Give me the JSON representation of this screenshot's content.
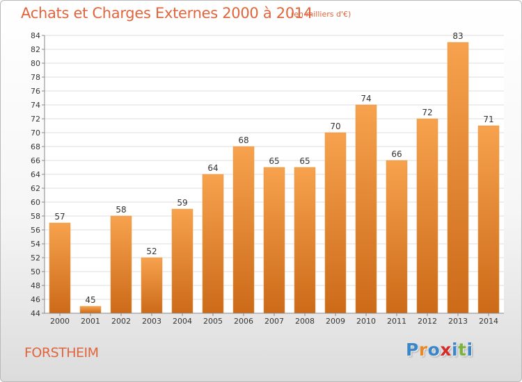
{
  "header": {
    "title": "Achats et Charges Externes 2000 à 2014",
    "unit": "(en milliers d'€)"
  },
  "footer": {
    "commune": "FORSTHEIM",
    "logo": [
      "P",
      "r",
      "o",
      "x",
      "i",
      "t",
      "i"
    ]
  },
  "colors": {
    "accent": "#e0643c",
    "bar_top": "#f7a24e",
    "bar_bottom": "#cc6a18",
    "logo_letters": [
      "#3a86c8",
      "#e6892a",
      "#3a86c8",
      "#d42b2b",
      "#3a86c8",
      "#7ab43c",
      "#3a86c8"
    ]
  },
  "chart_data": {
    "type": "bar",
    "categories": [
      "2000",
      "2001",
      "2002",
      "2003",
      "2004",
      "2005",
      "2006",
      "2007",
      "2008",
      "2009",
      "2010",
      "2011",
      "2012",
      "2013",
      "2014"
    ],
    "values": [
      57,
      45,
      58,
      52,
      59,
      64,
      68,
      65,
      65,
      70,
      74,
      66,
      72,
      83,
      71
    ],
    "ylim": [
      44,
      84
    ],
    "yticks": [
      44,
      46,
      48,
      50,
      52,
      54,
      56,
      58,
      60,
      62,
      64,
      66,
      68,
      70,
      72,
      74,
      76,
      78,
      80,
      82,
      84
    ],
    "grid": "horizontal",
    "data_labels": true
  }
}
